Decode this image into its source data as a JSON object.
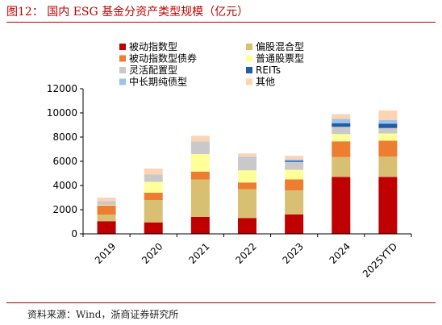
{
  "header": {
    "title": "图12：  国内 ESG 基金分资产类型规模（亿元）"
  },
  "footer": {
    "source": "资料来源：Wind，浙商证券研究所"
  },
  "chart_data": {
    "type": "bar",
    "stacked": true,
    "categories": [
      "2019",
      "2020",
      "2021",
      "2022",
      "2023",
      "2024",
      "2025YTD"
    ],
    "ylim": [
      0,
      12000
    ],
    "yticks": [
      0,
      2000,
      4000,
      6000,
      8000,
      10000,
      12000
    ],
    "ytick_labels": [
      "0",
      "2000",
      "4000",
      "6000",
      "8000",
      "10000",
      "12000"
    ],
    "grid": false,
    "legend_position": "top",
    "series": [
      {
        "name": "被动指数型",
        "color": "#c00000",
        "values": [
          1050,
          950,
          1400,
          1300,
          1600,
          4700,
          4700
        ]
      },
      {
        "name": "偏股混合型",
        "color": "#d9bf72",
        "values": [
          550,
          1850,
          3100,
          2400,
          2000,
          1650,
          1700
        ]
      },
      {
        "name": "被动指数型债券",
        "color": "#ed7d31",
        "values": [
          750,
          600,
          650,
          550,
          900,
          1300,
          1300
        ]
      },
      {
        "name": "普通股票型",
        "color": "#ffff99",
        "values": [
          50,
          900,
          1450,
          1000,
          800,
          600,
          600
        ]
      },
      {
        "name": "灵活配置型",
        "color": "#c9c9c9",
        "values": [
          300,
          600,
          1050,
          1000,
          650,
          600,
          450
        ]
      },
      {
        "name": "REITs",
        "color": "#1f5ca8",
        "values": [
          0,
          0,
          0,
          0,
          100,
          300,
          350
        ]
      },
      {
        "name": "中长期纯债型",
        "color": "#9dc3e6",
        "values": [
          0,
          0,
          0,
          100,
          100,
          350,
          300
        ]
      },
      {
        "name": "其他",
        "color": "#fbd4b4",
        "values": [
          300,
          500,
          450,
          300,
          300,
          400,
          800
        ]
      }
    ]
  }
}
